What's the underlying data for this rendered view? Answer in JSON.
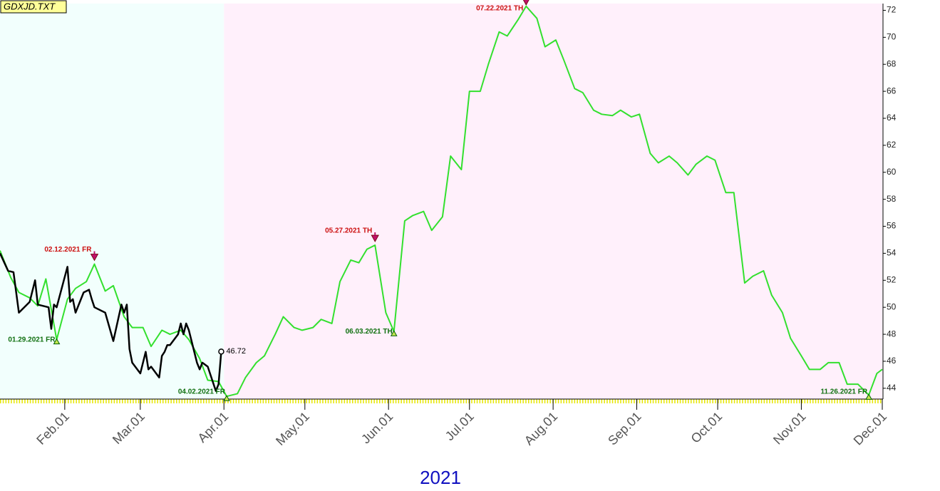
{
  "chart_data": {
    "type": "line",
    "file_tag": "GDXJD.TXT",
    "x_axis_label": "2021",
    "xlim": [
      "2021-01-08",
      "2021-12-01"
    ],
    "ylim": [
      43.2,
      72.5
    ],
    "xticks": [
      {
        "value": "2021-02-01",
        "label": "Feb.01"
      },
      {
        "value": "2021-03-01",
        "label": "Mar.01"
      },
      {
        "value": "2021-04-01",
        "label": "Apr.01"
      },
      {
        "value": "2021-05-01",
        "label": "May.01"
      },
      {
        "value": "2021-06-01",
        "label": "Jun.01"
      },
      {
        "value": "2021-07-01",
        "label": "Jul.01"
      },
      {
        "value": "2021-08-01",
        "label": "Aug.01"
      },
      {
        "value": "2021-09-01",
        "label": "Sep.01"
      },
      {
        "value": "2021-10-01",
        "label": "Oct.01"
      },
      {
        "value": "2021-11-01",
        "label": "Nov.01"
      },
      {
        "value": "2021-12-01",
        "label": "Dec.01"
      }
    ],
    "yticks": [
      44,
      46,
      48,
      50,
      52,
      54,
      56,
      58,
      60,
      62,
      64,
      66,
      68,
      70,
      72
    ],
    "regions": [
      {
        "from": "2021-01-08",
        "to": "2021-04-01",
        "color": "#f2fffd"
      },
      {
        "from": "2021-04-01",
        "to": "2021-12-01",
        "color": "#fff0fb"
      }
    ],
    "series": [
      {
        "color": "#33e02e",
        "width": 2,
        "x": [
          "2021-01-08",
          "2021-01-12",
          "2021-01-15",
          "2021-01-19",
          "2021-01-22",
          "2021-01-25",
          "2021-01-29",
          "2021-02-02",
          "2021-02-05",
          "2021-02-09",
          "2021-02-12",
          "2021-02-16",
          "2021-02-19",
          "2021-02-23",
          "2021-02-26",
          "2021-03-02",
          "2021-03-05",
          "2021-03-09",
          "2021-03-12",
          "2021-03-16",
          "2021-03-19",
          "2021-03-23",
          "2021-03-26",
          "2021-03-30",
          "2021-04-02",
          "2021-04-06",
          "2021-04-09",
          "2021-04-13",
          "2021-04-16",
          "2021-04-20",
          "2021-04-23",
          "2021-04-27",
          "2021-04-30",
          "2021-05-04",
          "2021-05-07",
          "2021-05-11",
          "2021-05-14",
          "2021-05-18",
          "2021-05-21",
          "2021-05-24",
          "2021-05-27",
          "2021-05-31",
          "2021-06-03",
          "2021-06-07",
          "2021-06-10",
          "2021-06-14",
          "2021-06-17",
          "2021-06-21",
          "2021-06-24",
          "2021-06-28",
          "2021-07-01",
          "2021-07-05",
          "2021-07-08",
          "2021-07-12",
          "2021-07-15",
          "2021-07-19",
          "2021-07-22",
          "2021-07-26",
          "2021-07-29",
          "2021-08-02",
          "2021-08-05",
          "2021-08-09",
          "2021-08-12",
          "2021-08-16",
          "2021-08-19",
          "2021-08-23",
          "2021-08-26",
          "2021-08-30",
          "2021-09-02",
          "2021-09-06",
          "2021-09-09",
          "2021-09-13",
          "2021-09-16",
          "2021-09-20",
          "2021-09-23",
          "2021-09-27",
          "2021-09-30",
          "2021-10-04",
          "2021-10-07",
          "2021-10-11",
          "2021-10-14",
          "2021-10-18",
          "2021-10-21",
          "2021-10-25",
          "2021-10-28",
          "2021-11-01",
          "2021-11-04",
          "2021-11-08",
          "2021-11-11",
          "2021-11-15",
          "2021-11-18",
          "2021-11-22",
          "2021-11-26",
          "2021-11-29",
          "2021-12-01"
        ],
        "values": [
          54.2,
          52.2,
          51.1,
          50.7,
          50.1,
          52.1,
          47.6,
          50.6,
          51.4,
          51.9,
          53.2,
          51.2,
          51.6,
          49.3,
          48.5,
          48.5,
          47.1,
          48.3,
          48.0,
          48.3,
          47.6,
          46.2,
          44.6,
          44.5,
          43.4,
          43.6,
          44.8,
          45.9,
          46.4,
          48.0,
          49.3,
          48.5,
          48.3,
          48.5,
          49.1,
          48.8,
          51.9,
          53.5,
          53.3,
          54.3,
          54.6,
          49.6,
          48.2,
          56.4,
          56.8,
          57.1,
          55.7,
          56.7,
          61.2,
          60.2,
          66.0,
          66.0,
          68.0,
          70.4,
          70.1,
          71.3,
          72.3,
          71.4,
          69.3,
          69.8,
          68.3,
          66.2,
          65.9,
          64.6,
          64.3,
          64.2,
          64.6,
          64.1,
          64.3,
          61.4,
          60.7,
          61.2,
          60.7,
          59.8,
          60.6,
          61.2,
          60.9,
          58.5,
          58.5,
          51.8,
          52.3,
          52.7,
          50.9,
          49.6,
          47.7,
          46.4,
          45.4,
          45.4,
          45.9,
          45.9,
          44.3,
          44.3,
          43.5,
          45.1,
          45.4
        ]
      },
      {
        "color": "#000000",
        "width": 2.5,
        "x": [
          "2021-01-08",
          "2021-01-11",
          "2021-01-13",
          "2021-01-15",
          "2021-01-19",
          "2021-01-21",
          "2021-01-22",
          "2021-01-26",
          "2021-01-27",
          "2021-01-28",
          "2021-01-29",
          "2021-02-02",
          "2021-02-03",
          "2021-02-04",
          "2021-02-05",
          "2021-02-08",
          "2021-02-10",
          "2021-02-11",
          "2021-02-12",
          "2021-02-16",
          "2021-02-19",
          "2021-02-22",
          "2021-02-23",
          "2021-02-24",
          "2021-02-25",
          "2021-02-26",
          "2021-03-01",
          "2021-03-03",
          "2021-03-04",
          "2021-03-05",
          "2021-03-08",
          "2021-03-09",
          "2021-03-10",
          "2021-03-11",
          "2021-03-12",
          "2021-03-15",
          "2021-03-16",
          "2021-03-17",
          "2021-03-18",
          "2021-03-19",
          "2021-03-22",
          "2021-03-23",
          "2021-03-24",
          "2021-03-26",
          "2021-03-29",
          "2021-03-30",
          "2021-03-31"
        ],
        "values": [
          54.0,
          52.7,
          52.6,
          49.6,
          50.4,
          52.0,
          50.2,
          50.0,
          48.4,
          50.2,
          50.0,
          53.0,
          50.4,
          50.6,
          49.6,
          51.1,
          51.3,
          50.6,
          50.0,
          49.6,
          47.5,
          50.2,
          49.6,
          50.2,
          46.9,
          45.9,
          45.1,
          46.7,
          45.4,
          45.6,
          44.8,
          46.4,
          46.7,
          47.2,
          47.2,
          48.0,
          48.8,
          48.0,
          48.8,
          48.3,
          45.9,
          45.4,
          45.9,
          45.6,
          43.8,
          44.3,
          46.72
        ]
      }
    ],
    "annotations": [
      {
        "text": "02.12.2021 FR",
        "x": "2021-02-12",
        "direction": "down"
      },
      {
        "text": "05.27.2021 TH",
        "x": "2021-05-27",
        "direction": "down"
      },
      {
        "text": "07.22.2021 TH",
        "x": "2021-07-22",
        "direction": "down"
      },
      {
        "text": "01.29.2021 FR",
        "x": "2021-01-29",
        "direction": "up"
      },
      {
        "text": "04.02.2021 FR",
        "x": "2021-04-02",
        "direction": "up"
      },
      {
        "text": "06.03.2021 TH",
        "x": "2021-06-03",
        "direction": "up"
      },
      {
        "text": "11.26.2021 FR",
        "x": "2021-11-26",
        "direction": "up"
      }
    ]
  }
}
